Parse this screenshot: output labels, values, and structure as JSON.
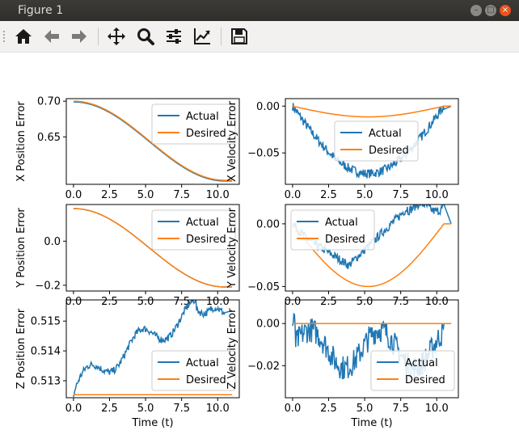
{
  "window": {
    "title": "Figure 1"
  },
  "toolbar": {
    "buttons": [
      {
        "icon": "home-icon"
      },
      {
        "icon": "back-arrow-icon"
      },
      {
        "icon": "forward-arrow-icon"
      },
      {
        "icon": "pan-icon"
      },
      {
        "icon": "zoom-icon"
      },
      {
        "icon": "subplots-config-icon"
      },
      {
        "icon": "edit-axis-icon"
      },
      {
        "icon": "save-icon"
      }
    ]
  },
  "colors": {
    "actual": "#1f77b4",
    "desired": "#ff7f0e"
  },
  "chart_data": [
    {
      "type": "line",
      "ylabel": "X Position Error",
      "xlim": [
        -0.5,
        11.5
      ],
      "ylim": [
        0.5836,
        0.7036
      ],
      "xticks": [
        0,
        2.5,
        5,
        7.5,
        10
      ],
      "xtick_labels": [
        "0.0",
        "2.5",
        "5.0",
        "7.5",
        "10.0"
      ],
      "yticks": [
        0.7,
        0.65
      ],
      "ytick_labels": [
        "0.70",
        "0.65"
      ],
      "legend": "upper right",
      "series": [
        {
          "name": "Actual",
          "kind": "cos",
          "from": 0.7,
          "to": 0.5892,
          "noise": 0,
          "offset": -0.001
        },
        {
          "name": "Desired",
          "kind": "cos",
          "from": 0.7,
          "to": 0.5892,
          "noise": 0,
          "offset": 0
        }
      ]
    },
    {
      "type": "line",
      "ylabel": "X Velocity Error",
      "xlim": [
        -0.5,
        11.5
      ],
      "ylim": [
        -0.0835,
        0.008
      ],
      "xticks": [
        0,
        2.5,
        5,
        7.5,
        10
      ],
      "xtick_labels": [
        "0.0",
        "2.5",
        "5.0",
        "7.5",
        "10.0"
      ],
      "yticks": [
        0,
        -0.05
      ],
      "ytick_labels": [
        "0.00",
        "−0.05"
      ],
      "legend": "center",
      "series": [
        {
          "name": "Actual",
          "kind": "sin",
          "amp": -0.072,
          "noise": 0.005,
          "start": 0
        },
        {
          "name": "Desired",
          "kind": "sin",
          "amp": -0.0115,
          "noise": 0,
          "start": 0
        }
      ]
    },
    {
      "type": "line",
      "ylabel": "Y Position Error",
      "xlim": [
        -0.5,
        11.5
      ],
      "ylim": [
        -0.2262,
        0.1662
      ],
      "xticks": [
        0,
        2.5,
        5,
        7.5,
        10
      ],
      "xtick_labels": [
        "0.0",
        "2.5",
        "5.0",
        "7.5",
        "10.0"
      ],
      "yticks": [
        0,
        -0.2
      ],
      "ytick_labels": [
        "0.0",
        "−0.2"
      ],
      "legend": "upper right",
      "series": [
        {
          "name": "Actual",
          "kind": "cos",
          "from": 0.148,
          "to": -0.208,
          "noise": 0,
          "offset": 0
        },
        {
          "name": "Desired",
          "kind": "cos",
          "from": 0.148,
          "to": -0.208,
          "noise": 0,
          "offset": 0
        }
      ]
    },
    {
      "type": "line",
      "ylabel": "Y Velocity Error",
      "xlim": [
        -0.5,
        11.5
      ],
      "ylim": [
        -0.0536,
        0.0154
      ],
      "xticks": [
        0,
        2.5,
        5,
        7.5,
        10
      ],
      "xtick_labels": [
        "0.0",
        "2.5",
        "5.0",
        "7.5",
        "10.0"
      ],
      "yticks": [
        0,
        -0.05
      ],
      "ytick_labels": [
        "0.00",
        "−0.05"
      ],
      "legend": "upper left",
      "series": [
        {
          "name": "Actual",
          "kind": "yvel",
          "noise": 0.0035
        },
        {
          "name": "Desired",
          "kind": "sin",
          "amp": -0.05,
          "noise": 0,
          "start": 0
        }
      ]
    },
    {
      "type": "line",
      "ylabel": "Z Position Error",
      "xlabel": "Time (t)",
      "xlim": [
        -0.5,
        11.5
      ],
      "ylim": [
        0.51243,
        0.51571
      ],
      "xticks": [
        0,
        2.5,
        5,
        7.5,
        10
      ],
      "xtick_labels": [
        "0.0",
        "2.5",
        "5.0",
        "7.5",
        "10.0"
      ],
      "yticks": [
        0.515,
        0.514,
        0.513
      ],
      "ytick_labels": [
        "0.515",
        "0.514",
        "0.513"
      ],
      "legend": "lower right",
      "series": [
        {
          "name": "Actual",
          "kind": "zpos",
          "noise": 0.00012
        },
        {
          "name": "Desired",
          "kind": "const",
          "value": 0.51253
        }
      ]
    },
    {
      "type": "line",
      "ylabel": "Z Velocity Error",
      "xlabel": "Time (t)",
      "xlim": [
        -0.5,
        11.5
      ],
      "ylim": [
        -0.0352,
        0.0112
      ],
      "xticks": [
        0,
        2.5,
        5,
        7.5,
        10
      ],
      "xtick_labels": [
        "0.0",
        "2.5",
        "5.0",
        "7.5",
        "10.0"
      ],
      "yticks": [
        0,
        -0.02
      ],
      "ytick_labels": [
        "0.00",
        "−0.02"
      ],
      "legend": "lower right",
      "series": [
        {
          "name": "Actual",
          "kind": "zvel",
          "noise": 0.006
        },
        {
          "name": "Desired",
          "kind": "const",
          "value": 0
        }
      ]
    }
  ]
}
